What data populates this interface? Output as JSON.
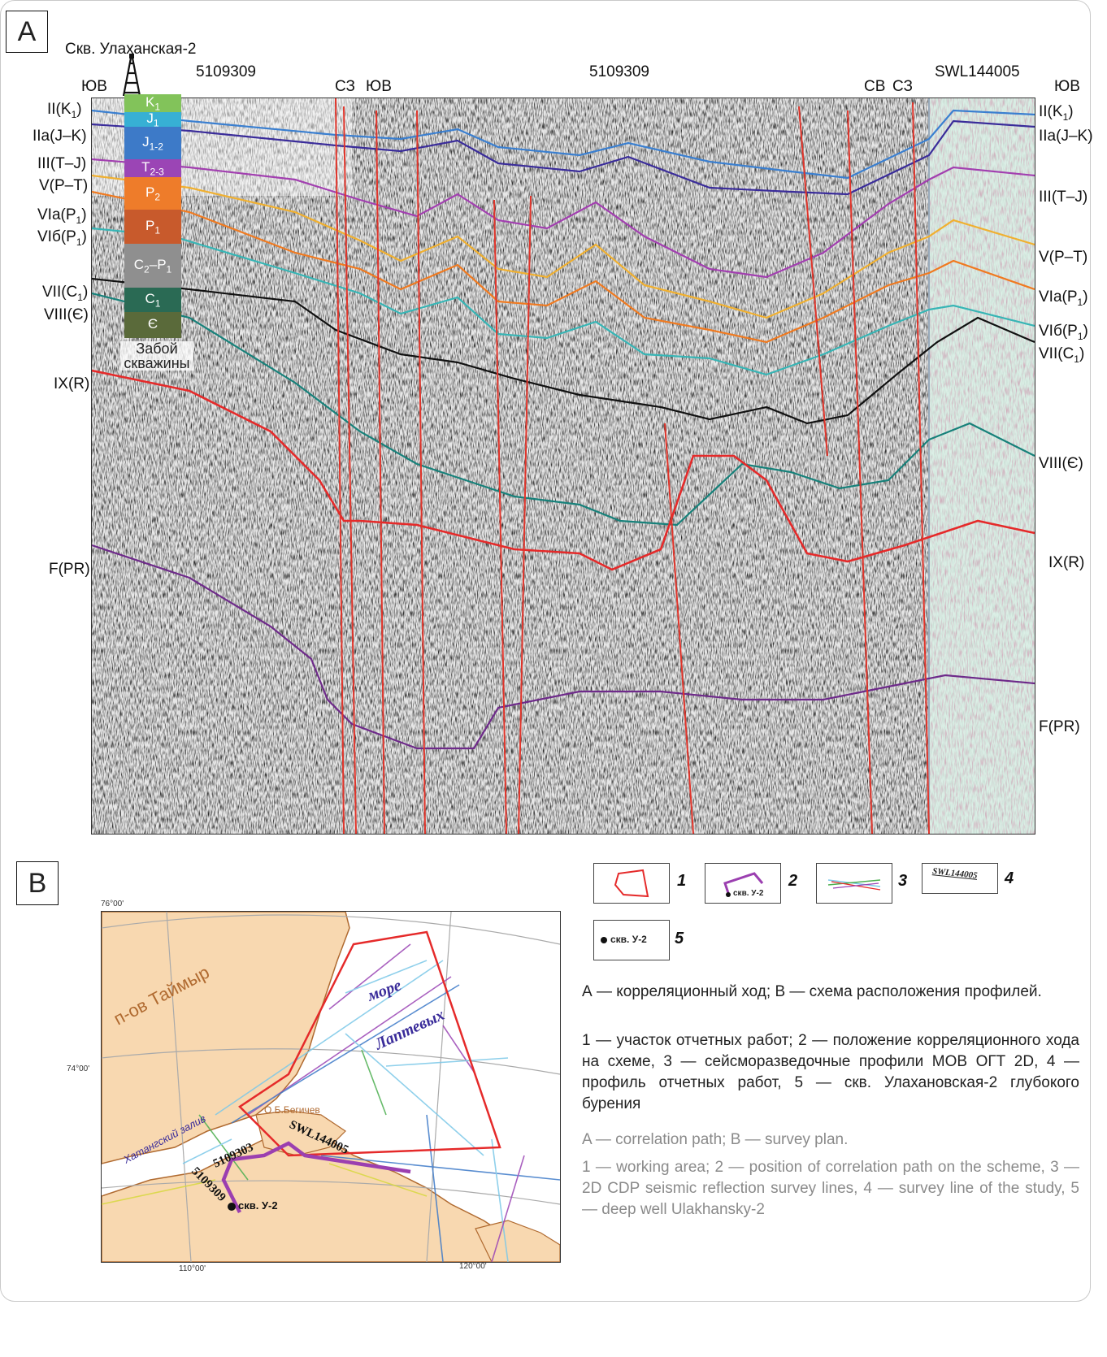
{
  "panelA": {
    "tag": "A",
    "well_title": "Скв. Улаханская-2",
    "line_labels": [
      {
        "id": "l1",
        "text": "5109309"
      },
      {
        "id": "l2",
        "text": "5109309"
      },
      {
        "id": "l3",
        "text": "SWL144005"
      }
    ],
    "directions": {
      "yv1": "ЮВ",
      "sz1": "СЗ",
      "yv2": "ЮВ",
      "sv": "СВ",
      "sz2": "СЗ",
      "yv3": "ЮВ"
    },
    "left_horizons": [
      "II(K1)",
      "IIa(J–K)",
      "III(T–J)",
      "V(P–T)",
      "VIa(P1)",
      "VIб(P1)",
      "VII(C1)",
      "VIII(Є)",
      "IX(R)",
      "F(PR)"
    ],
    "right_horizons": [
      "II(K1)",
      "IIa(J–K)",
      "III(T–J)",
      "V(P–T)",
      "VIa(P1)",
      "VIб(P1)",
      "VII(C1)",
      "VIII(Є)",
      "IX(R)",
      "F(PR)"
    ],
    "strat_column": [
      "K1",
      "J1",
      "J1-2",
      "T2-3",
      "P2",
      "P1",
      "C2–P1",
      "C1",
      "Є"
    ],
    "bottom_hole": "Забой скважины",
    "colors": {
      "II": "#3a7fd0",
      "IIa": "#3a2c9a",
      "III": "#a23fb0",
      "V": "#f0b030",
      "VIa": "#f07a20",
      "VIb": "#37b5b5",
      "VII": "#111111",
      "VIII": "#17817a",
      "IX": "#e52a2a",
      "F": "#6e2a8a",
      "fault": "#e0342a"
    }
  },
  "panelB": {
    "tag": "B",
    "map": {
      "lat_top": "76°00'",
      "lat_mid": "74°00'",
      "lon_left": "110°00'",
      "lon_right": "120°00'",
      "sea_word1": "море",
      "sea_word2": "Лаптевых",
      "peninsula": "п-ов Таймыр",
      "bay": "Хатангский залив",
      "island": "О.Б.Бегичев",
      "profile_1": "5109303",
      "profile_2": "5109309",
      "profile_3": "SWL144005",
      "well": "скв. У-2"
    },
    "legend": [
      {
        "num": "1"
      },
      {
        "num": "2",
        "sample": "скв. У-2"
      },
      {
        "num": "3"
      },
      {
        "num": "4",
        "sample": "SWL144005"
      },
      {
        "num": "5",
        "sample": "скв. У-2"
      }
    ],
    "caption_ru_1": "А — корреляционный ход; В — схема расположения профилей.",
    "caption_ru_2": "1 — участок отчетных работ; 2 — положение корреляционного хода на схеме, 3 — сейсморазведочные профили МОВ ОГТ 2D, 4 — профиль отчетных работ, 5 — скв. Улахановская-2 глубокого бурения",
    "caption_en_1": "A — correlation path; B — survey plan.",
    "caption_en_2": "1 — working area; 2 — position of correlation path on the scheme, 3 — 2D CDP seismic reflection survey lines, 4 — survey line of the study, 5 — deep well Ulakhansky-2"
  }
}
